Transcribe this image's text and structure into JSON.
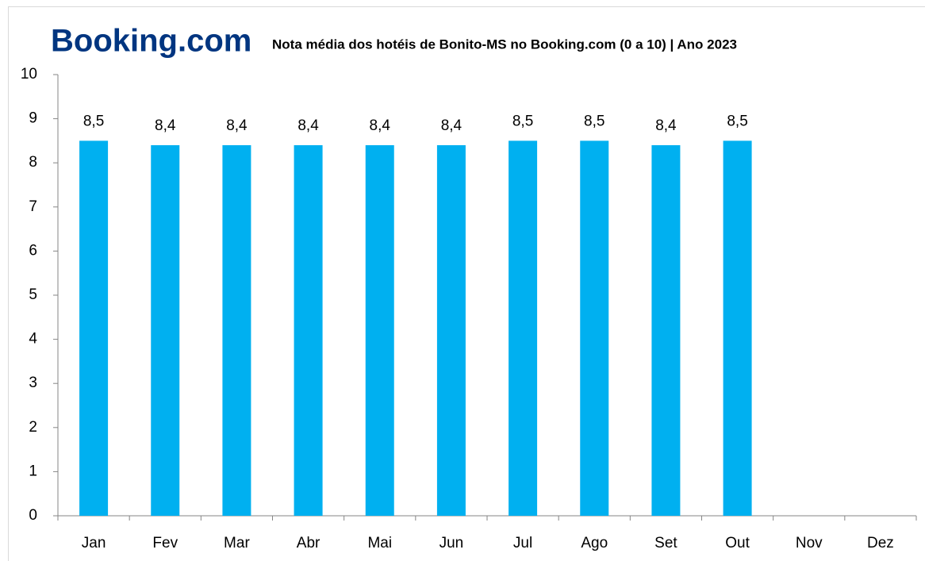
{
  "chart_data": {
    "type": "bar",
    "brand": "Booking.com",
    "title": "Nota média dos hotéis de Bonito-MS no Booking.com (0 a 10) | Ano 2023",
    "categories": [
      "Jan",
      "Fev",
      "Mar",
      "Abr",
      "Mai",
      "Jun",
      "Jul",
      "Ago",
      "Set",
      "Out",
      "Nov",
      "Dez"
    ],
    "values": [
      8.5,
      8.4,
      8.4,
      8.4,
      8.4,
      8.4,
      8.5,
      8.5,
      8.4,
      8.5,
      null,
      null
    ],
    "value_labels": [
      "8,5",
      "8,4",
      "8,4",
      "8,4",
      "8,4",
      "8,4",
      "8,5",
      "8,5",
      "8,4",
      "8,5",
      null,
      null
    ],
    "color": "#00b0f0",
    "ylim": [
      0,
      10
    ],
    "yticks": [
      0,
      1,
      2,
      3,
      4,
      5,
      6,
      7,
      8,
      9,
      10
    ],
    "grid": false
  }
}
